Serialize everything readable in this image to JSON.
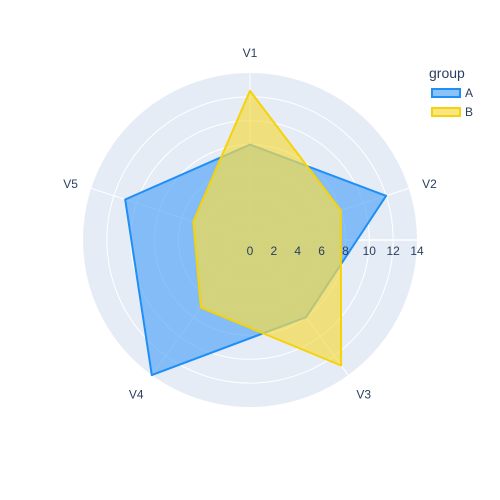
{
  "chart_data": {
    "type": "radar",
    "axes": [
      "V1",
      "V2",
      "V3",
      "V4",
      "V5"
    ],
    "radial_range": [
      0,
      14
    ],
    "radial_ticks": [
      0,
      2,
      4,
      6,
      8,
      10,
      12,
      14
    ],
    "series": [
      {
        "name": "A",
        "values": [
          8,
          12,
          8,
          14,
          11
        ],
        "color": "#1f8ff5",
        "fill": "#5aa8f7"
      },
      {
        "name": "B",
        "values": [
          12.5,
          8,
          13,
          7,
          5
        ],
        "color": "#f5d20a",
        "fill": "#f5dc4a"
      }
    ],
    "legend": {
      "title": "group",
      "position": "top-right"
    },
    "grid": true,
    "background_color": "#e5ecf6"
  }
}
